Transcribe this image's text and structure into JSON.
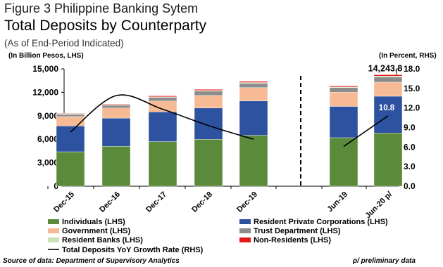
{
  "header": {
    "figure_label": "Figure 3 Philippine Banking Sytem",
    "title": "Total Deposits by Counterparty",
    "subtitle": "(As of End-Period Indicated)",
    "left_unit": "(In Billion Pesos, LHS)",
    "right_unit": "(In Percent, RHS)"
  },
  "footer": {
    "source": "Source of data: Department of Supervisory Analytics",
    "note": "p/  preliminary data"
  },
  "chart_data": {
    "type": "bar",
    "stacked": true,
    "categories": [
      "Dec-15",
      "Dec-16",
      "Dec-17",
      "Dec-18",
      "Dec-19",
      "Jun-19",
      "Jun-20 p/"
    ],
    "ylim_left": [
      0,
      15000
    ],
    "yticks_left": [
      "0",
      "3,000",
      "6,000",
      "9,000",
      "12,000",
      "15,000"
    ],
    "ylim_right": [
      0,
      18
    ],
    "yticks_right": [
      "0.0",
      "3.0",
      "6.0",
      "9.0",
      "12.0",
      "15.0",
      "18.0"
    ],
    "series": [
      {
        "name": "Individuals (LHS)",
        "color": "#5a8a3a",
        "values": [
          4400,
          5100,
          5700,
          6000,
          6500,
          6200,
          6800
        ]
      },
      {
        "name": "Resident Private Corporations (LHS)",
        "color": "#2d52a0",
        "values": [
          3300,
          3600,
          3800,
          4000,
          4400,
          4000,
          4700
        ]
      },
      {
        "name": "Government (LHS)",
        "color": "#f6bb95",
        "values": [
          1200,
          1300,
          1400,
          1600,
          1700,
          1800,
          1800
        ]
      },
      {
        "name": "Trust Department (LHS)",
        "color": "#8c8c8c",
        "values": [
          300,
          350,
          450,
          550,
          550,
          600,
          650
        ]
      },
      {
        "name": "Resident Banks (LHS)",
        "color": "#c9e2b3",
        "values": [
          60,
          70,
          80,
          90,
          100,
          90,
          120
        ]
      },
      {
        "name": "Non-Residents (LHS)",
        "color": "#e01818",
        "values": [
          60,
          80,
          120,
          140,
          150,
          140,
          173.8
        ]
      }
    ],
    "line_series": {
      "name": "Total Deposits YoY Growth Rate (RHS)",
      "color": "#000000",
      "axis": "right",
      "segments": [
        {
          "categories": [
            "Dec-15",
            "Dec-16",
            "Dec-17",
            "Dec-18",
            "Dec-19"
          ],
          "values": [
            8.3,
            13.9,
            11.8,
            9.3,
            7.2
          ]
        },
        {
          "categories": [
            "Jun-19",
            "Jun-20 p/"
          ],
          "values": [
            6.1,
            10.8
          ]
        }
      ]
    },
    "annotations": [
      {
        "text": "14,243.8",
        "category": "Jun-20 p/",
        "kind": "total"
      },
      {
        "text": "10.8",
        "category": "Jun-20 p/",
        "kind": "line-value"
      }
    ],
    "legend_position": "bottom",
    "separator": "dashed vertical line between Dec-19 and Jun-19",
    "grid": false
  }
}
